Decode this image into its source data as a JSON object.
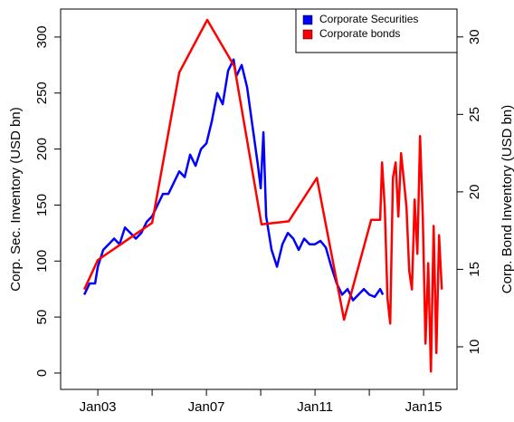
{
  "chart_data": {
    "type": "line",
    "y_label": "Corp. Sec. Inventory (USD bn)",
    "y2_label": "Corp. Bond Inventory (USD bn)",
    "xlim": [
      2001.63,
      2016.23
    ],
    "xticks": [
      {
        "value": 2003,
        "label": "Jan03"
      },
      {
        "value": 2005,
        "label": null
      },
      {
        "value": 2007,
        "label": "Jan07"
      },
      {
        "value": 2009,
        "label": null
      },
      {
        "value": 2011,
        "label": "Jan11"
      },
      {
        "value": 2013,
        "label": null
      },
      {
        "value": 2015,
        "label": "Jan15"
      }
    ],
    "ylim": [
      -14.6,
      325
    ],
    "yticks": [
      0,
      50,
      100,
      150,
      200,
      250,
      300
    ],
    "y2lim": [
      7.25,
      31.8
    ],
    "y2ticks": [
      10,
      15,
      20,
      25,
      30
    ],
    "legend": "top-right",
    "series": [
      {
        "name": "Corporate Securities",
        "color": "#0000ff",
        "axis": "y",
        "x": [
          2002.5,
          2002.7,
          2002.9,
          2003.0,
          2003.2,
          2003.4,
          2003.6,
          2003.8,
          2004.0,
          2004.2,
          2004.4,
          2004.6,
          2004.8,
          2005.0,
          2005.2,
          2005.4,
          2005.6,
          2005.8,
          2006.0,
          2006.2,
          2006.4,
          2006.6,
          2006.8,
          2007.0,
          2007.2,
          2007.4,
          2007.6,
          2007.8,
          2008.0,
          2008.1,
          2008.3,
          2008.5,
          2008.7,
          2008.9,
          2009.0,
          2009.1,
          2009.2,
          2009.4,
          2009.6,
          2009.8,
          2010.0,
          2010.2,
          2010.4,
          2010.6,
          2010.8,
          2011.0,
          2011.2,
          2011.4,
          2011.6,
          2011.8,
          2012.0,
          2012.2,
          2012.4,
          2012.6,
          2012.8,
          2013.0,
          2013.2,
          2013.4,
          2013.5
        ],
        "values": [
          70,
          80,
          80,
          95,
          110,
          115,
          120,
          115,
          130,
          125,
          120,
          125,
          135,
          140,
          150,
          160,
          160,
          170,
          180,
          175,
          195,
          185,
          200,
          205,
          225,
          250,
          240,
          270,
          280,
          265,
          275,
          255,
          220,
          185,
          165,
          215,
          140,
          110,
          95,
          115,
          125,
          120,
          110,
          120,
          115,
          115,
          118,
          112,
          95,
          80,
          70,
          75,
          65,
          70,
          75,
          70,
          68,
          75,
          70
        ]
      },
      {
        "name": "Corporate bonds",
        "color": "#ff0000",
        "axis": "y2",
        "x": [
          2002.5,
          2003.0,
          2005.0,
          2006.0,
          2007.03,
          2008.03,
          2009.03,
          2010.03,
          2011.07,
          2012.07,
          2013.07,
          2013.4,
          2013.47,
          2013.57,
          2013.67,
          2013.77,
          2013.87,
          2013.97,
          2014.07,
          2014.17,
          2014.27,
          2014.37,
          2014.47,
          2014.57,
          2014.67,
          2014.77,
          2014.87,
          2014.97,
          2015.07,
          2015.17,
          2015.27,
          2015.37,
          2015.47,
          2015.57,
          2015.67
        ],
        "values": [
          13.7,
          15.6,
          18.0,
          27.7,
          31.1,
          28.1,
          17.9,
          18.1,
          20.9,
          11.75,
          18.2,
          18.2,
          21.9,
          19,
          13.1,
          11.5,
          20.9,
          21.9,
          18.4,
          22.5,
          20.8,
          19,
          14.9,
          13.7,
          19.5,
          16,
          23.6,
          18.4,
          10.2,
          15.4,
          8.4,
          17.8,
          9.6,
          17.2,
          13.7
        ]
      }
    ]
  }
}
